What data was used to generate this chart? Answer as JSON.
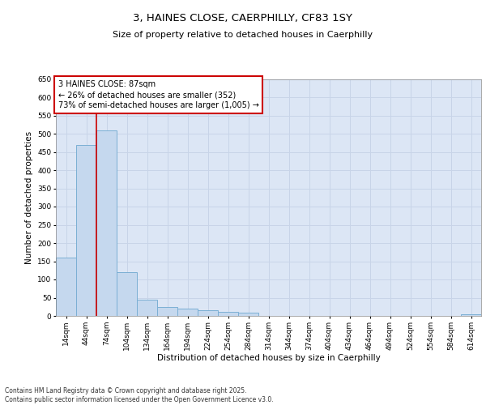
{
  "title_line1": "3, HAINES CLOSE, CAERPHILLY, CF83 1SY",
  "title_line2": "Size of property relative to detached houses in Caerphilly",
  "xlabel": "Distribution of detached houses by size in Caerphilly",
  "ylabel": "Number of detached properties",
  "categories": [
    "14sqm",
    "44sqm",
    "74sqm",
    "104sqm",
    "134sqm",
    "164sqm",
    "194sqm",
    "224sqm",
    "254sqm",
    "284sqm",
    "314sqm",
    "344sqm",
    "374sqm",
    "404sqm",
    "434sqm",
    "464sqm",
    "494sqm",
    "524sqm",
    "554sqm",
    "584sqm",
    "614sqm"
  ],
  "values": [
    160,
    470,
    510,
    120,
    45,
    25,
    20,
    15,
    12,
    8,
    0,
    0,
    0,
    0,
    0,
    0,
    0,
    0,
    0,
    0,
    4
  ],
  "bar_color": "#c5d8ee",
  "bar_edge_color": "#7bafd4",
  "vline_color": "#cc0000",
  "vline_position": 1.5,
  "annotation_text": "3 HAINES CLOSE: 87sqm\n← 26% of detached houses are smaller (352)\n73% of semi-detached houses are larger (1,005) →",
  "annotation_box_color": "#cc0000",
  "ylim": [
    0,
    650
  ],
  "yticks": [
    0,
    50,
    100,
    150,
    200,
    250,
    300,
    350,
    400,
    450,
    500,
    550,
    600,
    650
  ],
  "grid_color": "#c8d4e8",
  "background_color": "#dce6f5",
  "footer_text": "Contains HM Land Registry data © Crown copyright and database right 2025.\nContains public sector information licensed under the Open Government Licence v3.0.",
  "title_fontsize": 9.5,
  "subtitle_fontsize": 8,
  "axis_label_fontsize": 7.5,
  "tick_fontsize": 6.5,
  "annotation_fontsize": 7,
  "footer_fontsize": 5.5
}
